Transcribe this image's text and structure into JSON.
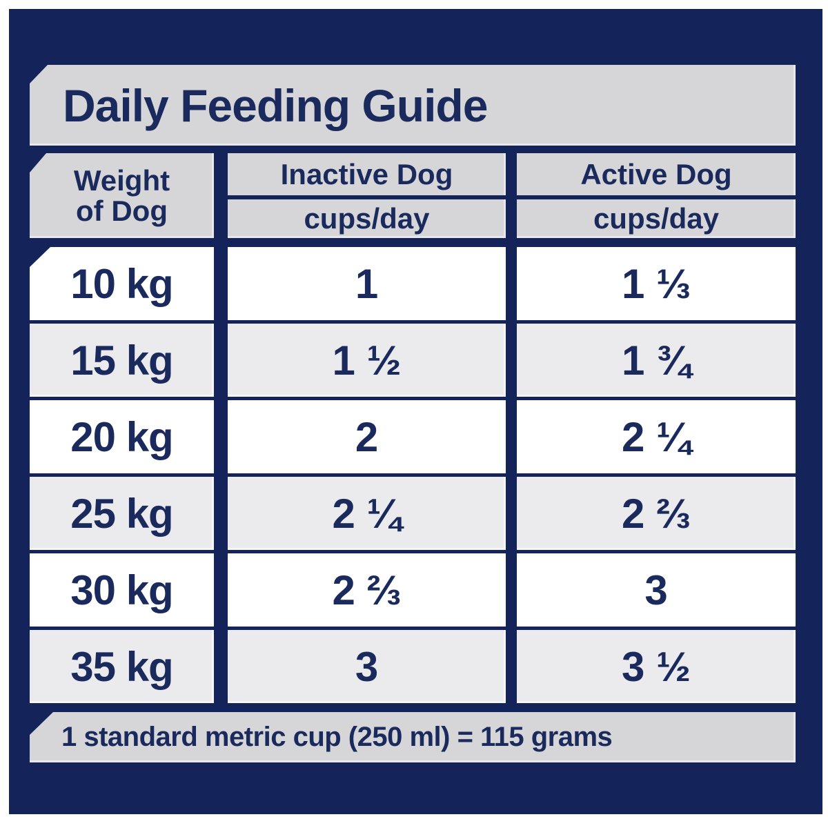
{
  "colors": {
    "background": "#ffffff",
    "panel_navy": "#14235a",
    "text_navy": "#1b2a5c",
    "header_gray": "#d6d6d9",
    "row_alt_gray": "#ebebee",
    "row_white": "#ffffff"
  },
  "banner": {
    "title": "Daily Feeding Guide"
  },
  "table": {
    "weight_header": {
      "line1": "Weight",
      "line2": "of Dog"
    },
    "columns": [
      {
        "label": "Inactive Dog",
        "unit": "cups/day"
      },
      {
        "label": "Active Dog",
        "unit": "cups/day"
      }
    ],
    "rows": [
      {
        "weight": "10 kg",
        "inactive": "1",
        "active": "1 ⅓"
      },
      {
        "weight": "15 kg",
        "inactive": "1 ½",
        "active": "1 ¾"
      },
      {
        "weight": "20 kg",
        "inactive": "2",
        "active": "2 ¼"
      },
      {
        "weight": "25 kg",
        "inactive": "2 ¼",
        "active": "2 ⅔"
      },
      {
        "weight": "30 kg",
        "inactive": "2 ⅔",
        "active": "3"
      },
      {
        "weight": "35 kg",
        "inactive": "3",
        "active": "3 ½"
      }
    ]
  },
  "footnote": "1 standard metric cup (250 ml) = 115 grams",
  "chart_data": {
    "type": "table",
    "title": "Daily Feeding Guide",
    "columns": [
      "Weight of Dog",
      "Inactive Dog (cups/day)",
      "Active Dog (cups/day)"
    ],
    "rows": [
      [
        "10 kg",
        "1",
        "1 1/3"
      ],
      [
        "15 kg",
        "1 1/2",
        "1 3/4"
      ],
      [
        "20 kg",
        "2",
        "2 1/4"
      ],
      [
        "25 kg",
        "2 1/4",
        "2 2/3"
      ],
      [
        "30 kg",
        "2 2/3",
        "3"
      ],
      [
        "35 kg",
        "3",
        "3 1/2"
      ]
    ],
    "footnote": "1 standard metric cup (250 ml) = 115 grams",
    "cup_ml": 250,
    "cup_grams": 115
  }
}
